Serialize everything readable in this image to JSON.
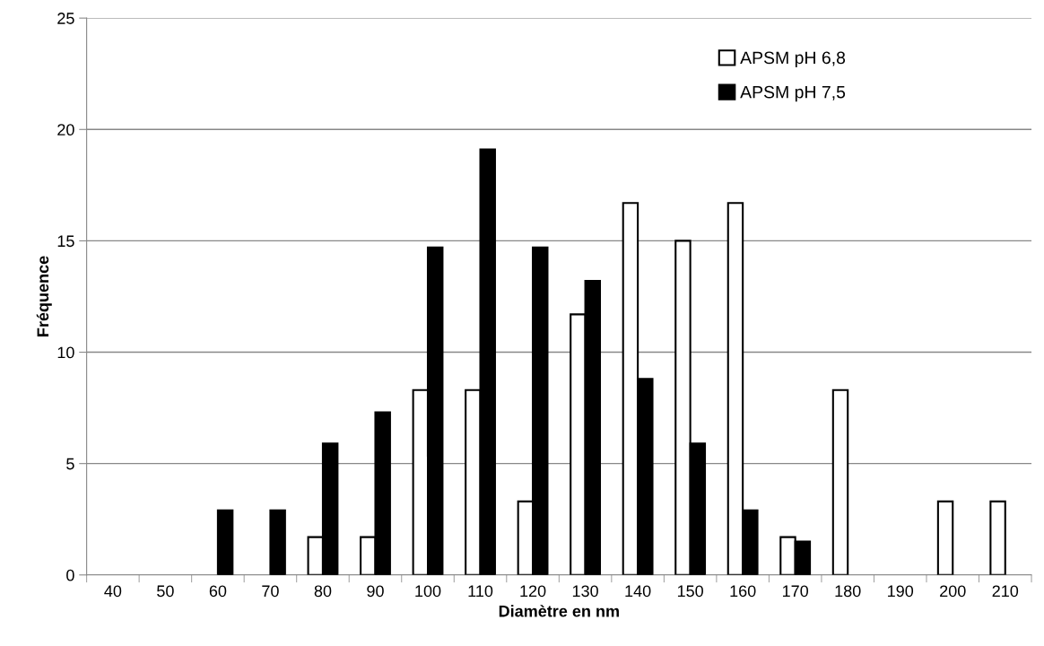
{
  "chart_data": {
    "type": "bar",
    "xlabel": "Diamètre en nm",
    "ylabel": "Fréquence",
    "categories": [
      "40",
      "50",
      "60",
      "70",
      "80",
      "90",
      "100",
      "110",
      "120",
      "130",
      "140",
      "150",
      "160",
      "170",
      "180",
      "190",
      "200",
      "210"
    ],
    "series": [
      {
        "name": "APSM pH 6,8",
        "color": "#ffffff",
        "values": [
          0,
          0,
          0,
          0,
          1.7,
          1.7,
          8.3,
          8.3,
          3.3,
          11.7,
          16.7,
          15.0,
          16.7,
          1.7,
          8.3,
          0,
          3.3,
          3.3
        ]
      },
      {
        "name": "APSM pH 7,5",
        "color": "#000000",
        "values": [
          0,
          0,
          2.9,
          2.9,
          5.9,
          7.3,
          14.7,
          19.1,
          14.7,
          13.2,
          8.8,
          5.9,
          2.9,
          1.5,
          0,
          0,
          0,
          0
        ]
      }
    ],
    "ylim": [
      0,
      25
    ],
    "yticks": [
      0,
      5,
      10,
      15,
      20,
      25
    ],
    "grid": "y",
    "legend": "top right"
  }
}
